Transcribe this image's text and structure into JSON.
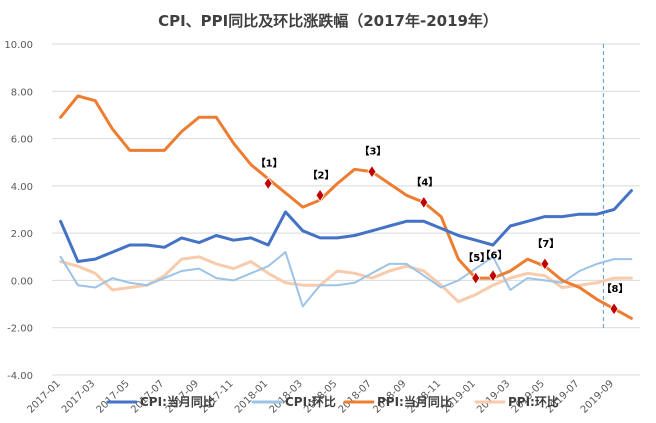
{
  "chart_data": {
    "type": "line",
    "title": "CPI、PPI同比及环比涨跌幅（2017年-2019年）",
    "ylim": [
      -4,
      10
    ],
    "yticks": [
      "10.00",
      "8.00",
      "6.00",
      "4.00",
      "2.00",
      "0.00",
      "-2.00",
      "-4.00"
    ],
    "x": [
      "2017-01",
      "2017-02",
      "2017-03",
      "2017-04",
      "2017-05",
      "2017-06",
      "2017-07",
      "2017-08",
      "2017-09",
      "2017-10",
      "2017-11",
      "2017-12",
      "2018-01",
      "2018-02",
      "2018-03",
      "2018-04",
      "2018-05",
      "2018-06",
      "2018-07",
      "2018-08",
      "2018-09",
      "2018-10",
      "2018-11",
      "2018-12",
      "2019-01",
      "2019-02",
      "2019-03",
      "2019-04",
      "2019-05",
      "2019-06",
      "2019-07",
      "2019-08",
      "2019-09",
      "2019-10"
    ],
    "xtick_labels": [
      "2017-01",
      "2017-03",
      "2017-05",
      "2017-07",
      "2017-09",
      "2017-11",
      "2018-01",
      "2018-03",
      "2018-05",
      "2018-07",
      "2018-09",
      "2018-11",
      "2019-01",
      "2019-03",
      "2019-05",
      "2019-07",
      "2019-09"
    ],
    "series": [
      {
        "name": "CPI:当月同比",
        "color": "#4472C4",
        "width": 3,
        "values": [
          2.5,
          0.8,
          0.9,
          1.2,
          1.5,
          1.5,
          1.4,
          1.8,
          1.6,
          1.9,
          1.7,
          1.8,
          1.5,
          2.9,
          2.1,
          1.8,
          1.8,
          1.9,
          2.1,
          2.3,
          2.5,
          2.5,
          2.2,
          1.9,
          1.7,
          1.5,
          2.3,
          2.5,
          2.7,
          2.7,
          2.8,
          2.8,
          3.0,
          3.8
        ]
      },
      {
        "name": "CPI:环比",
        "color": "#9DC3E6",
        "width": 2,
        "values": [
          1.0,
          -0.2,
          -0.3,
          0.1,
          -0.1,
          -0.2,
          0.1,
          0.4,
          0.5,
          0.1,
          0.0,
          0.3,
          0.6,
          1.2,
          -1.1,
          -0.2,
          -0.2,
          -0.1,
          0.3,
          0.7,
          0.7,
          0.2,
          -0.3,
          0.0,
          0.5,
          1.0,
          -0.4,
          0.1,
          0.0,
          -0.1,
          0.4,
          0.7,
          0.9,
          0.9
        ]
      },
      {
        "name": "PPI:当月同比",
        "color": "#ED7D31",
        "width": 3,
        "values": [
          6.9,
          7.8,
          7.6,
          6.4,
          5.5,
          5.5,
          5.5,
          6.3,
          6.9,
          6.9,
          5.8,
          4.9,
          4.3,
          3.7,
          3.1,
          3.4,
          4.1,
          4.7,
          4.6,
          4.1,
          3.6,
          3.3,
          2.7,
          0.9,
          0.1,
          0.1,
          0.4,
          0.9,
          0.6,
          0.0,
          -0.3,
          -0.8,
          -1.2,
          -1.6
        ]
      },
      {
        "name": "PPI:环比",
        "color": "#F8CBAD",
        "width": 3,
        "values": [
          0.8,
          0.6,
          0.3,
          -0.4,
          -0.3,
          -0.2,
          0.2,
          0.9,
          1.0,
          0.7,
          0.5,
          0.8,
          0.3,
          -0.1,
          -0.2,
          -0.2,
          0.4,
          0.3,
          0.1,
          0.4,
          0.6,
          0.4,
          -0.2,
          -0.9,
          -0.6,
          -0.2,
          0.1,
          0.3,
          0.2,
          -0.3,
          -0.2,
          -0.1,
          0.1,
          0.1
        ]
      }
    ],
    "annotations": [
      {
        "label": "【1】",
        "x": "2018-01",
        "y": 4.1
      },
      {
        "label": "【2】",
        "x": "2018-04",
        "y": 3.6
      },
      {
        "label": "【3】",
        "x": "2018-07",
        "y": 4.6
      },
      {
        "label": "【4】",
        "x": "2018-10",
        "y": 3.3
      },
      {
        "label": "【5】",
        "x": "2019-01",
        "y": 0.1
      },
      {
        "label": "【6】",
        "x": "2019-02",
        "y": 0.2
      },
      {
        "label": "【7】",
        "x": "2019-05",
        "y": 0.7
      },
      {
        "label": "【8】",
        "x": "2019-09",
        "y": -1.2
      }
    ],
    "marker_color": "#C00000",
    "vline_x": "2019-08",
    "vline_color": "#5B9BD5",
    "legend_position": "bottom",
    "grid": "horizontal"
  }
}
